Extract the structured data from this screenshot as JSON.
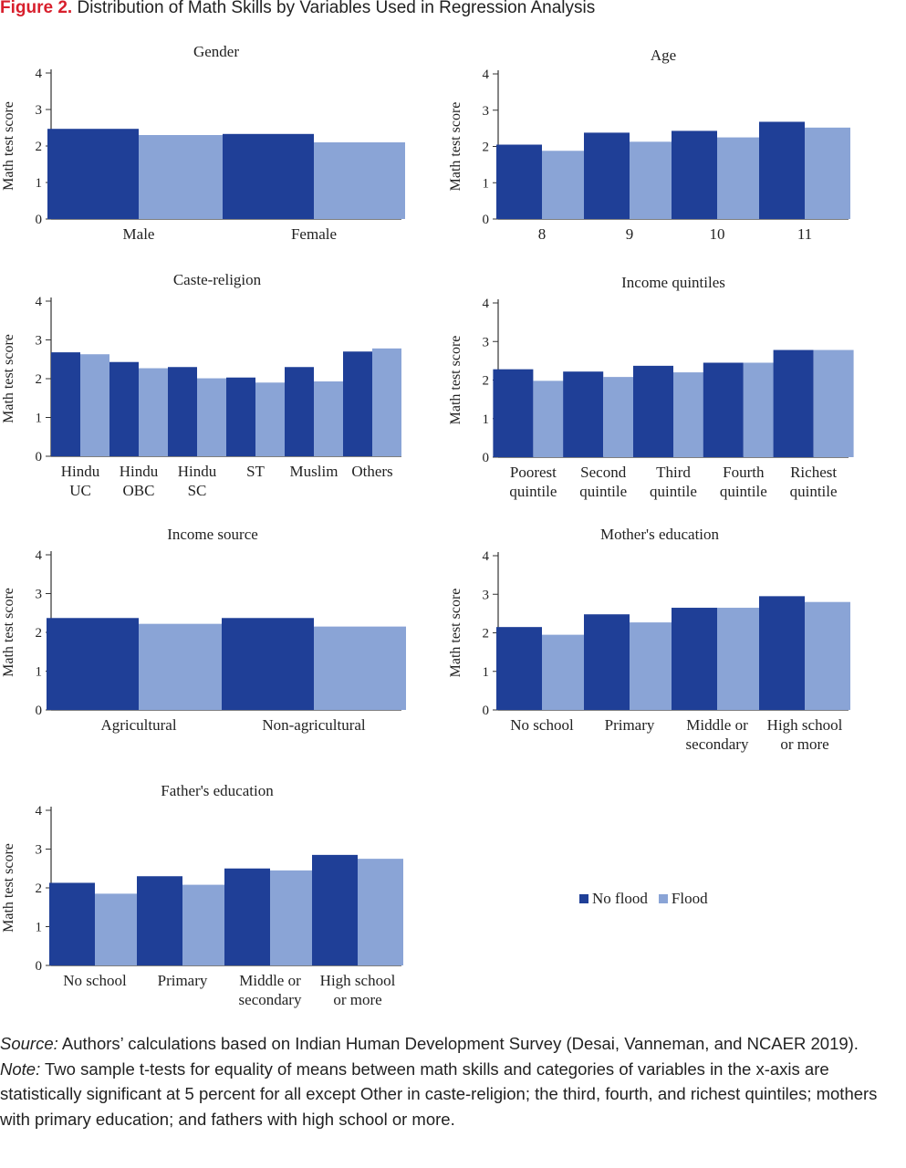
{
  "figure": {
    "label": "Figure 2.",
    "title": "Distribution of Math Skills by Variables Used in Regression Analysis"
  },
  "colors": {
    "no_flood": "#1f3f97",
    "flood": "#8aa4d6",
    "axis": "#333333"
  },
  "legend": {
    "no_flood": "No flood",
    "flood": "Flood"
  },
  "chart_data": [
    {
      "type": "bar",
      "title": "Gender",
      "ylabel": "Math test score",
      "ylim": [
        0,
        4
      ],
      "yticks": [
        "0",
        "1",
        "2",
        "3",
        "4"
      ],
      "categories": [
        [
          "Male"
        ],
        [
          "Female"
        ]
      ],
      "series": [
        {
          "name": "No flood",
          "values": [
            2.47,
            2.33
          ]
        },
        {
          "name": "Flood",
          "values": [
            2.3,
            2.1
          ]
        }
      ]
    },
    {
      "type": "bar",
      "title": "Age",
      "ylabel": "Math test score",
      "ylim": [
        0,
        4
      ],
      "yticks": [
        "0",
        "1",
        "2",
        "3",
        "4"
      ],
      "categories": [
        [
          "8"
        ],
        [
          "9"
        ],
        [
          "10"
        ],
        [
          "11"
        ]
      ],
      "series": [
        {
          "name": "No flood",
          "values": [
            2.05,
            2.38,
            2.43,
            2.68
          ]
        },
        {
          "name": "Flood",
          "values": [
            1.88,
            2.13,
            2.25,
            2.52
          ]
        }
      ]
    },
    {
      "type": "bar",
      "title": "Caste-religion",
      "ylabel": "Math test score",
      "ylim": [
        0,
        4
      ],
      "yticks": [
        "0",
        "1",
        "2",
        "3",
        "4"
      ],
      "categories": [
        [
          "Hindu",
          "UC"
        ],
        [
          "Hindu",
          "OBC"
        ],
        [
          "Hindu",
          "SC"
        ],
        [
          "ST"
        ],
        [
          "Muslim"
        ],
        [
          "Others"
        ]
      ],
      "series": [
        {
          "name": "No flood",
          "values": [
            2.68,
            2.43,
            2.3,
            2.03,
            2.3,
            2.7
          ]
        },
        {
          "name": "Flood",
          "values": [
            2.63,
            2.27,
            2.01,
            1.9,
            1.93,
            2.78
          ]
        }
      ]
    },
    {
      "type": "bar",
      "title": "Income quintiles",
      "ylabel": "Math test score",
      "ylim": [
        0,
        4
      ],
      "yticks": [
        "0",
        "1",
        "2",
        "3",
        "4"
      ],
      "categories": [
        [
          "Poorest",
          "quintile"
        ],
        [
          "Second",
          "quintile"
        ],
        [
          "Third",
          "quintile"
        ],
        [
          "Fourth",
          "quintile"
        ],
        [
          "Richest",
          "quintile"
        ]
      ],
      "series": [
        {
          "name": "No flood",
          "values": [
            2.28,
            2.22,
            2.37,
            2.45,
            2.78
          ]
        },
        {
          "name": "Flood",
          "values": [
            1.98,
            2.08,
            2.2,
            2.45,
            2.78
          ]
        }
      ]
    },
    {
      "type": "bar",
      "title": "Income source",
      "ylabel": "Math test score",
      "ylim": [
        0,
        4
      ],
      "yticks": [
        "0",
        "1",
        "2",
        "3",
        "4"
      ],
      "categories": [
        [
          "Agricultural"
        ],
        [
          "Non-agricultural"
        ]
      ],
      "series": [
        {
          "name": "No flood",
          "values": [
            2.37,
            2.37
          ]
        },
        {
          "name": "Flood",
          "values": [
            2.22,
            2.15
          ]
        }
      ]
    },
    {
      "type": "bar",
      "title": "Mother's education",
      "ylabel": "Math test score",
      "ylim": [
        0,
        4
      ],
      "yticks": [
        "0",
        "1",
        "2",
        "3",
        "4"
      ],
      "categories": [
        [
          "No school"
        ],
        [
          "Primary"
        ],
        [
          "Middle or",
          "secondary"
        ],
        [
          "High school",
          "or more"
        ]
      ],
      "series": [
        {
          "name": "No flood",
          "values": [
            2.15,
            2.48,
            2.65,
            2.95
          ]
        },
        {
          "name": "Flood",
          "values": [
            1.95,
            2.27,
            2.65,
            2.8
          ]
        }
      ]
    },
    {
      "type": "bar",
      "title": "Father's education",
      "ylabel": "Math test score",
      "ylim": [
        0,
        4
      ],
      "yticks": [
        "0",
        "1",
        "2",
        "3",
        "4"
      ],
      "categories": [
        [
          "No school"
        ],
        [
          "Primary"
        ],
        [
          "Middle or",
          "secondary"
        ],
        [
          "High school",
          "or more"
        ]
      ],
      "series": [
        {
          "name": "No flood",
          "values": [
            2.13,
            2.3,
            2.5,
            2.85
          ]
        },
        {
          "name": "Flood",
          "values": [
            1.85,
            2.08,
            2.45,
            2.75
          ]
        }
      ]
    }
  ],
  "notes": {
    "source_label": "Source:",
    "source_text": " Authors’ calculations based on Indian Human Development Survey (Desai, Vanneman, and NCAER 2019).",
    "note_label": "Note:",
    "note_text": " Two sample t-tests for equality of means between math skills and categories of variables in the x-axis are statistically significant at 5 percent for all except Other in caste-religion; the third, fourth, and richest quintiles; mothers with primary education; and fathers with high school or more."
  }
}
